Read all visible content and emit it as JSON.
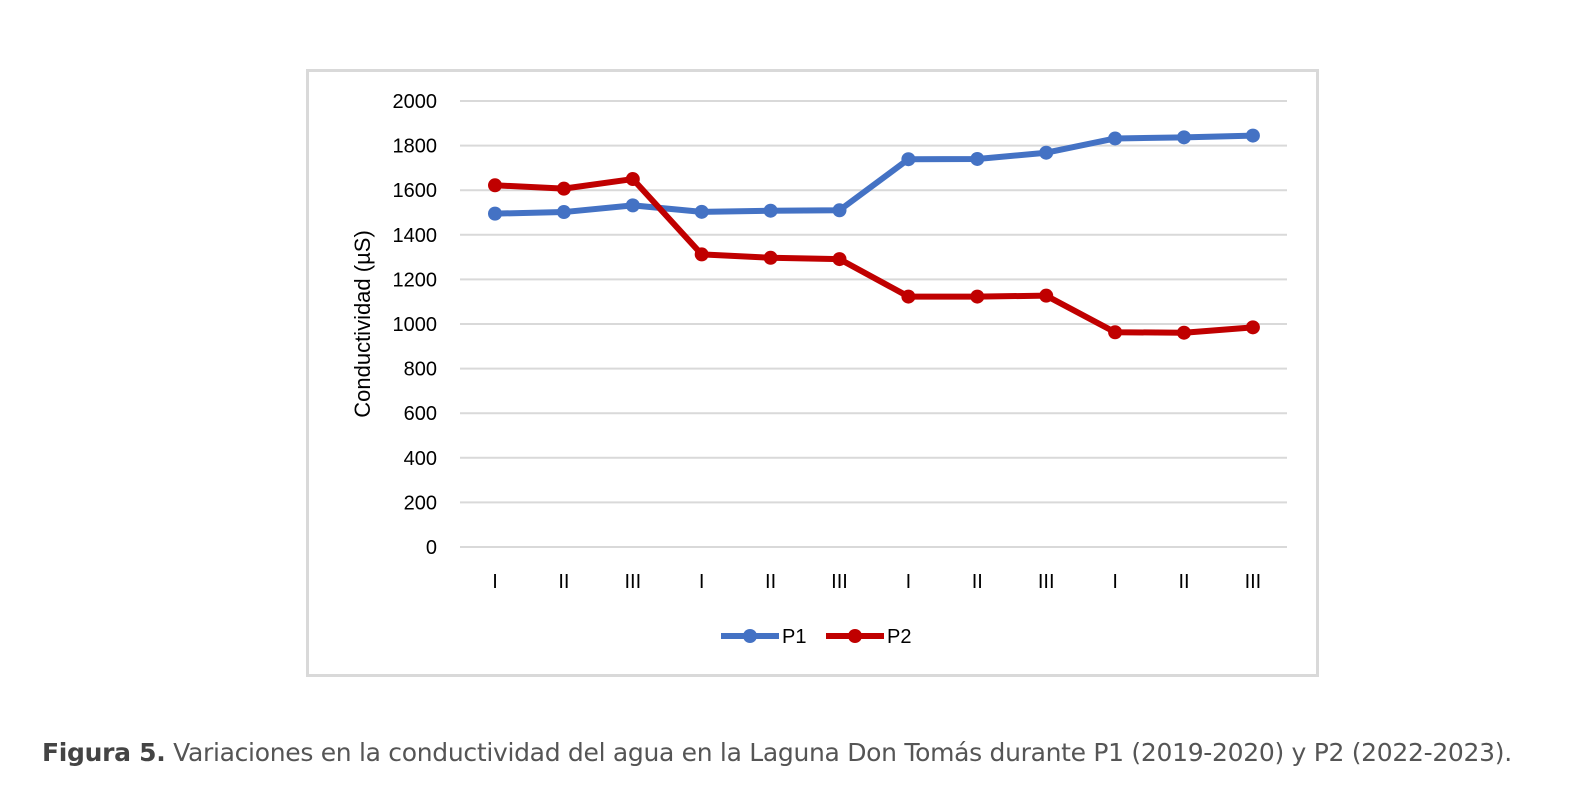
{
  "chart_data": {
    "type": "line",
    "title": "",
    "xlabel": "",
    "ylabel": "Conductividad (µS)",
    "ylim": [
      0,
      2000
    ],
    "yticks": [
      0,
      200,
      400,
      600,
      800,
      1000,
      1200,
      1400,
      1600,
      1800,
      2000
    ],
    "categories": [
      "I",
      "II",
      "III",
      "I",
      "II",
      "III",
      "I",
      "II",
      "III",
      "I",
      "II",
      "III"
    ],
    "grid": true,
    "legend_position": "bottom",
    "series": [
      {
        "name": "P1",
        "color": "#4472c4",
        "values": [
          1495,
          1502,
          1532,
          1503,
          1508,
          1510,
          1739,
          1740,
          1768,
          1832,
          1837,
          1845
        ]
      },
      {
        "name": "P2",
        "color": "#c00000",
        "values": [
          1622,
          1607,
          1650,
          1312,
          1297,
          1291,
          1123,
          1123,
          1127,
          963,
          961,
          985
        ]
      }
    ]
  },
  "caption": {
    "label": "Figura 5.",
    "text": " Variaciones en la conductividad del agua en la Laguna Don Tomás durante P1 (2019-2020) y P2 (2022-2023)."
  }
}
